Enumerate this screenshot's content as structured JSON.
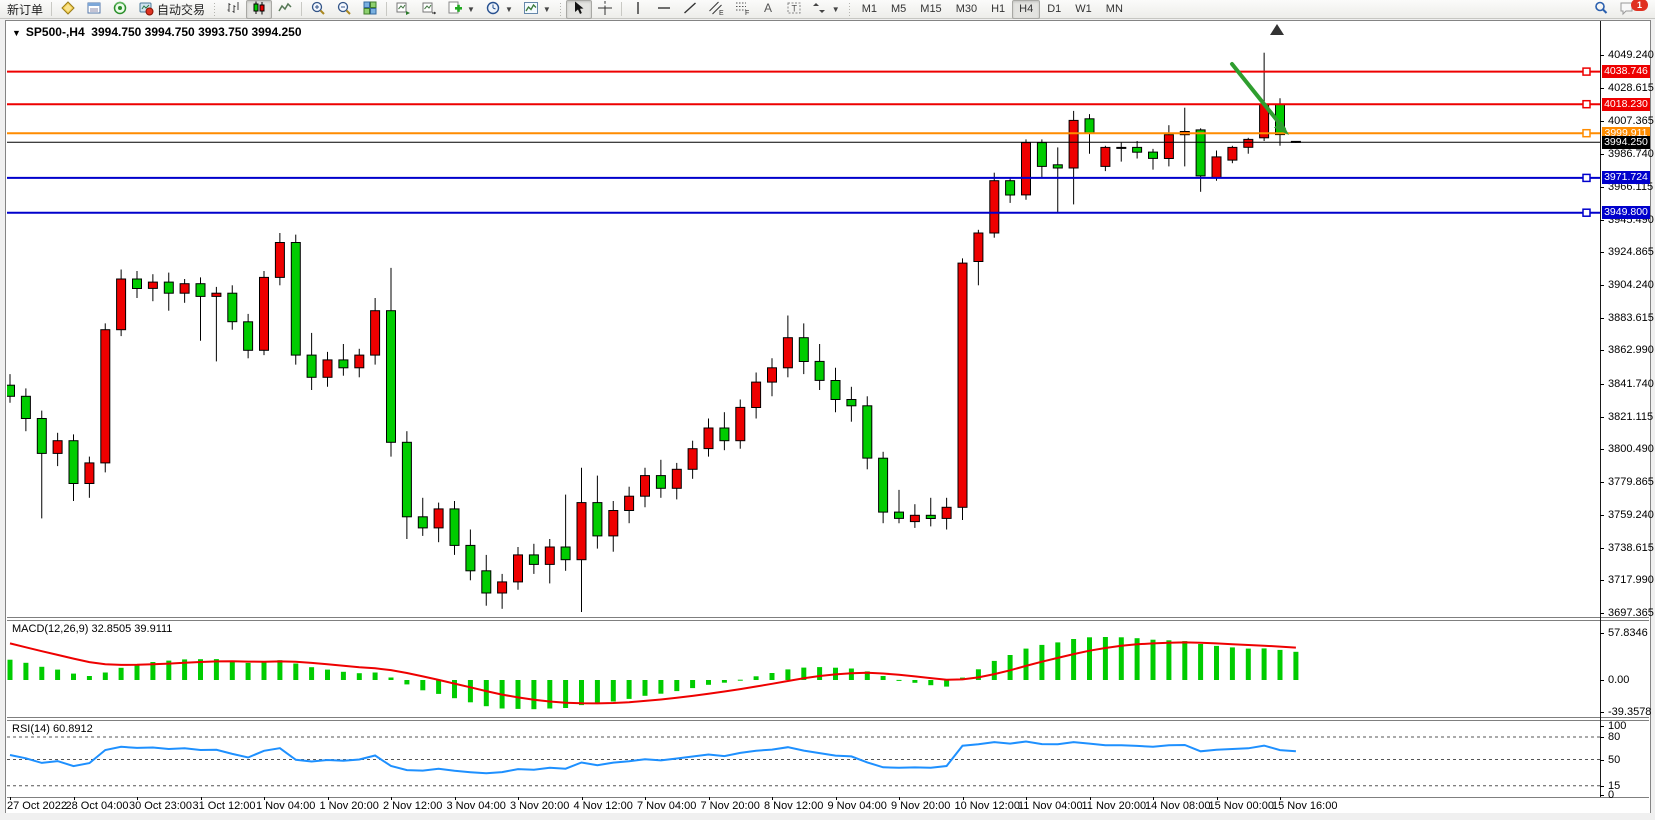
{
  "toolbar": {
    "new_order_label": "新订单",
    "auto_trading_label": "自动交易",
    "timeframes": [
      "M1",
      "M5",
      "M15",
      "M30",
      "H1",
      "H4",
      "D1",
      "W1",
      "MN"
    ],
    "active_timeframe": "H4",
    "active_chart_type": "candlestick",
    "active_tool": "cursor",
    "notification_count": "1"
  },
  "window": {
    "symbol_period": "SP500-,H4",
    "ohlc_summary": "3994.750 3994.750 3993.750 3994.250"
  },
  "price_axis": {
    "ticks": [
      "4049.240",
      "4028.615",
      "4007.365",
      "3986.740",
      "3966.115",
      "3945.490",
      "3924.865",
      "3904.240",
      "3883.615",
      "3862.990",
      "3841.740",
      "3821.115",
      "3800.490",
      "3779.865",
      "3759.240",
      "3738.615",
      "3717.990",
      "3697.365"
    ]
  },
  "hlines": [
    {
      "price": 4038.746,
      "label": "4038.746",
      "color": "#ee0000"
    },
    {
      "price": 4018.23,
      "label": "4018.230",
      "color": "#ee0000"
    },
    {
      "price": 3999.911,
      "label": "3999.911",
      "color": "#ff8c00"
    },
    {
      "price": 3971.724,
      "label": "3971.724",
      "color": "#0000cc"
    },
    {
      "price": 3949.8,
      "label": "3949.800",
      "color": "#0000cc"
    }
  ],
  "bid": {
    "price": 3994.25,
    "label": "3994.250",
    "color": "#000000"
  },
  "indicators": {
    "macd": {
      "label": "MACD(12,26,9) 32.8505 39.9111",
      "name": "MACD",
      "params": "12,26,9",
      "macd_value": "32.8505",
      "signal_value": "39.9111",
      "axis_ticks": [
        "57.8346",
        "0.00",
        "-39.3578"
      ],
      "histogram_color": "#00cc00",
      "signal_color": "#ee0000"
    },
    "rsi": {
      "label": "RSI(14) 60.8912",
      "name": "RSI",
      "params": "14",
      "value": "60.8912",
      "axis_ticks": [
        "100",
        "80",
        "50",
        "15",
        "0"
      ],
      "levels": [
        80,
        50,
        15
      ],
      "line_color": "#1e90ff"
    }
  },
  "annotations": {
    "arrow_color": "#2e9e2e"
  },
  "chart_data": {
    "type": "candlestick",
    "symbol": "SP500-",
    "timeframe": "H4",
    "title": "SP500-,H4 3994.750 3994.750 3993.750 3994.250",
    "up_color": "#ee0000",
    "down_color": "#00cc00",
    "price_range": [
      3694.8,
      4070.0
    ],
    "x_axis_labels": [
      "27 Oct 2022",
      "28 Oct 04:00",
      "30 Oct 23:00",
      "31 Oct 12:00",
      "1 Nov 04:00",
      "1 Nov 20:00",
      "2 Nov 12:00",
      "3 Nov 04:00",
      "3 Nov 20:00",
      "4 Nov 12:00",
      "7 Nov 04:00",
      "7 Nov 20:00",
      "8 Nov 12:00",
      "9 Nov 04:00",
      "9 Nov 20:00",
      "10 Nov 12:00",
      "11 Nov 04:00",
      "11 Nov 20:00",
      "14 Nov 08:00",
      "15 Nov 00:00",
      "15 Nov 16:00"
    ],
    "bars_per_label": 4,
    "ohlc": [
      [
        3841,
        3848,
        3830,
        3834
      ],
      [
        3834,
        3839,
        3812,
        3820
      ],
      [
        3820,
        3825,
        3757,
        3798
      ],
      [
        3798,
        3811,
        3790,
        3806
      ],
      [
        3806,
        3810,
        3768,
        3779
      ],
      [
        3779,
        3796,
        3770,
        3792
      ],
      [
        3792,
        3880,
        3786,
        3876
      ],
      [
        3876,
        3914,
        3872,
        3908
      ],
      [
        3908,
        3913,
        3896,
        3902
      ],
      [
        3902,
        3911,
        3894,
        3906
      ],
      [
        3906,
        3912,
        3888,
        3899
      ],
      [
        3899,
        3908,
        3893,
        3905
      ],
      [
        3905,
        3909,
        3869,
        3897
      ],
      [
        3897,
        3903,
        3856,
        3899
      ],
      [
        3899,
        3904,
        3876,
        3881
      ],
      [
        3881,
        3886,
        3858,
        3863
      ],
      [
        3863,
        3913,
        3860,
        3909
      ],
      [
        3909,
        3937,
        3904,
        3931
      ],
      [
        3931,
        3936,
        3854,
        3860
      ],
      [
        3860,
        3874,
        3838,
        3846
      ],
      [
        3846,
        3862,
        3840,
        3857
      ],
      [
        3857,
        3867,
        3847,
        3852
      ],
      [
        3852,
        3864,
        3846,
        3860
      ],
      [
        3860,
        3896,
        3854,
        3888
      ],
      [
        3888,
        3915,
        3796,
        3805
      ],
      [
        3805,
        3812,
        3744,
        3758
      ],
      [
        3758,
        3770,
        3746,
        3751
      ],
      [
        3751,
        3767,
        3742,
        3763
      ],
      [
        3763,
        3768,
        3734,
        3740
      ],
      [
        3740,
        3750,
        3718,
        3724
      ],
      [
        3724,
        3734,
        3702,
        3710
      ],
      [
        3710,
        3722,
        3700,
        3717
      ],
      [
        3717,
        3739,
        3712,
        3734
      ],
      [
        3734,
        3741,
        3722,
        3728
      ],
      [
        3728,
        3744,
        3716,
        3739
      ],
      [
        3739,
        3772,
        3724,
        3731
      ],
      [
        3731,
        3789,
        3698,
        3767
      ],
      [
        3767,
        3784,
        3738,
        3746
      ],
      [
        3746,
        3768,
        3736,
        3762
      ],
      [
        3762,
        3777,
        3754,
        3771
      ],
      [
        3771,
        3789,
        3764,
        3784
      ],
      [
        3784,
        3794,
        3770,
        3776
      ],
      [
        3776,
        3792,
        3769,
        3788
      ],
      [
        3788,
        3806,
        3782,
        3801
      ],
      [
        3801,
        3820,
        3796,
        3814
      ],
      [
        3814,
        3824,
        3800,
        3806
      ],
      [
        3806,
        3832,
        3801,
        3827
      ],
      [
        3827,
        3849,
        3820,
        3843
      ],
      [
        3843,
        3858,
        3834,
        3852
      ],
      [
        3852,
        3885,
        3846,
        3871
      ],
      [
        3871,
        3880,
        3848,
        3856
      ],
      [
        3856,
        3867,
        3838,
        3844
      ],
      [
        3844,
        3852,
        3824,
        3832
      ],
      [
        3832,
        3840,
        3818,
        3828
      ],
      [
        3828,
        3834,
        3788,
        3795
      ],
      [
        3795,
        3799,
        3754,
        3761
      ],
      [
        3761,
        3775,
        3754,
        3757
      ],
      [
        3755,
        3766,
        3751,
        3759
      ],
      [
        3759,
        3770,
        3752,
        3757
      ],
      [
        3757,
        3770,
        3750,
        3764
      ],
      [
        3764,
        3921,
        3756,
        3918
      ],
      [
        3919,
        3939,
        3904,
        3937
      ],
      [
        3937,
        3975,
        3934,
        3970
      ],
      [
        3970,
        3972,
        3956,
        3961
      ],
      [
        3961,
        3996,
        3958,
        3994
      ],
      [
        3994,
        3996,
        3972,
        3979
      ],
      [
        3980,
        3991,
        3950,
        3978
      ],
      [
        3978,
        4014,
        3955,
        4008
      ],
      [
        4009,
        4012,
        3987,
        4000
      ],
      [
        3979,
        3992,
        3976,
        3991
      ],
      [
        3991,
        3994,
        3982,
        3991
      ],
      [
        3991,
        3995,
        3984,
        3988
      ],
      [
        3988,
        3990,
        3977,
        3984
      ],
      [
        3984,
        4005,
        3979,
        3999
      ],
      [
        3999,
        4016,
        3979,
        4001
      ],
      [
        4002,
        4003,
        3963,
        3973
      ],
      [
        3972,
        3989,
        3970,
        3985
      ],
      [
        3983,
        3992,
        3981,
        3991
      ],
      [
        3991,
        3997,
        3987,
        3996
      ],
      [
        3997,
        4050.7,
        3995,
        4018
      ],
      [
        4018,
        4022,
        3992,
        3999
      ],
      [
        3994.75,
        3994.75,
        3993.75,
        3994.25
      ]
    ]
  }
}
